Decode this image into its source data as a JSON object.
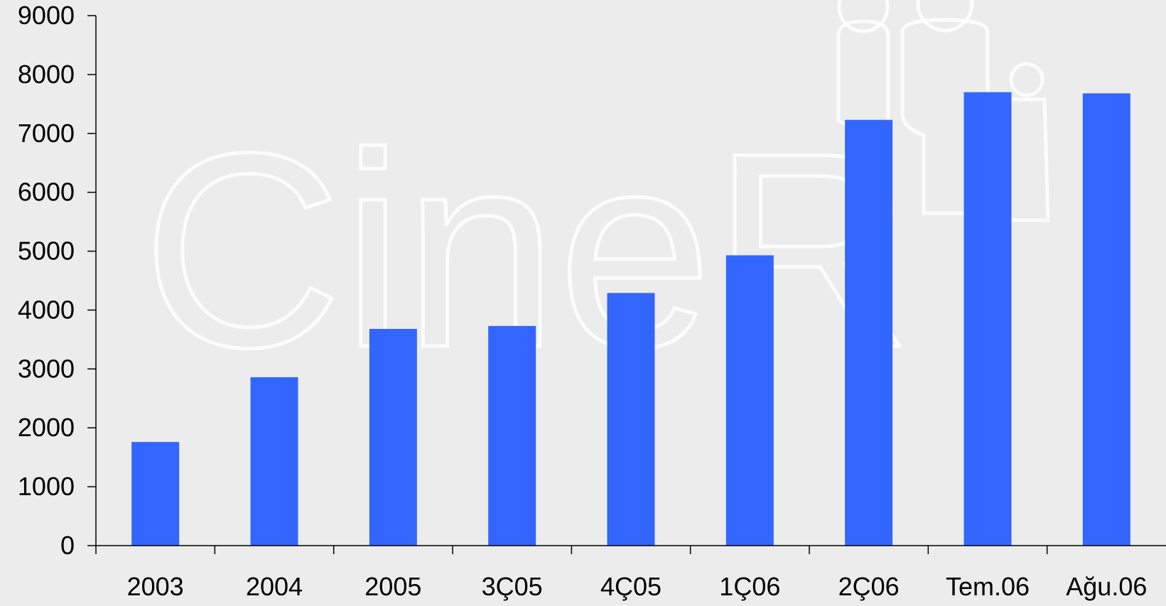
{
  "chart_data": {
    "type": "bar",
    "categories": [
      "2003",
      "2004",
      "2005",
      "3Ç05",
      "4Ç05",
      "1Ç06",
      "2Ç06",
      "Tem.06",
      "Ağu.06"
    ],
    "values": [
      1760,
      2860,
      3680,
      3730,
      4290,
      4930,
      7230,
      7700,
      7680
    ],
    "title": "",
    "xlabel": "",
    "ylabel": "",
    "ylim": [
      0,
      9000
    ],
    "yticks": [
      0,
      1000,
      2000,
      3000,
      4000,
      5000,
      6000,
      7000,
      8000,
      9000
    ],
    "grid": false,
    "legend": "none",
    "bar_color": "#3366ff",
    "axis_color": "#000000",
    "background_color": "#ececec"
  },
  "watermark": {
    "text": "CineR",
    "icon": "people-silhouette-icon"
  }
}
